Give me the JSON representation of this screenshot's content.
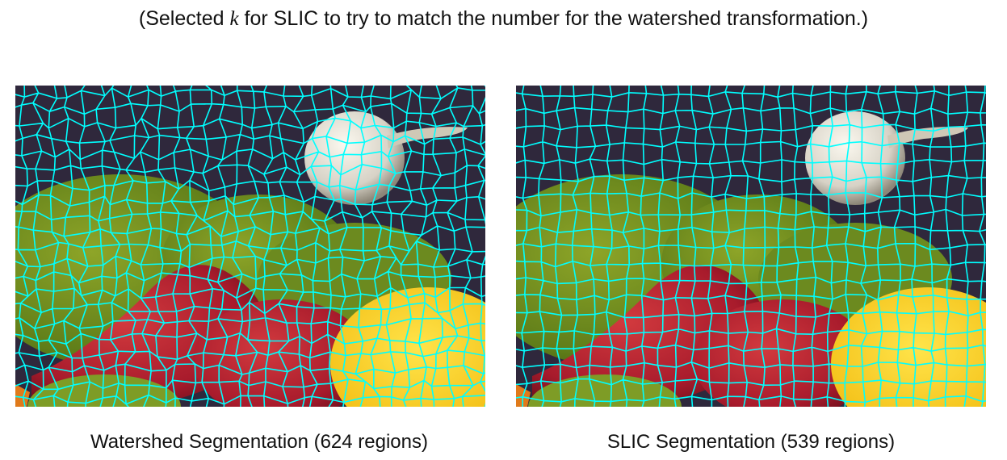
{
  "caption": {
    "prefix": "(Selected ",
    "variable": "k",
    "suffix": " for SLIC to try to match the number for the watershed transformation.)"
  },
  "panels": [
    {
      "label": "Watershed Segmentation (624 regions)",
      "kind": "watershed"
    },
    {
      "label": "SLIC Segmentation (539 regions)",
      "kind": "slic"
    }
  ],
  "colors": {
    "boundary": "#00ffff",
    "background": "#ffffff"
  }
}
